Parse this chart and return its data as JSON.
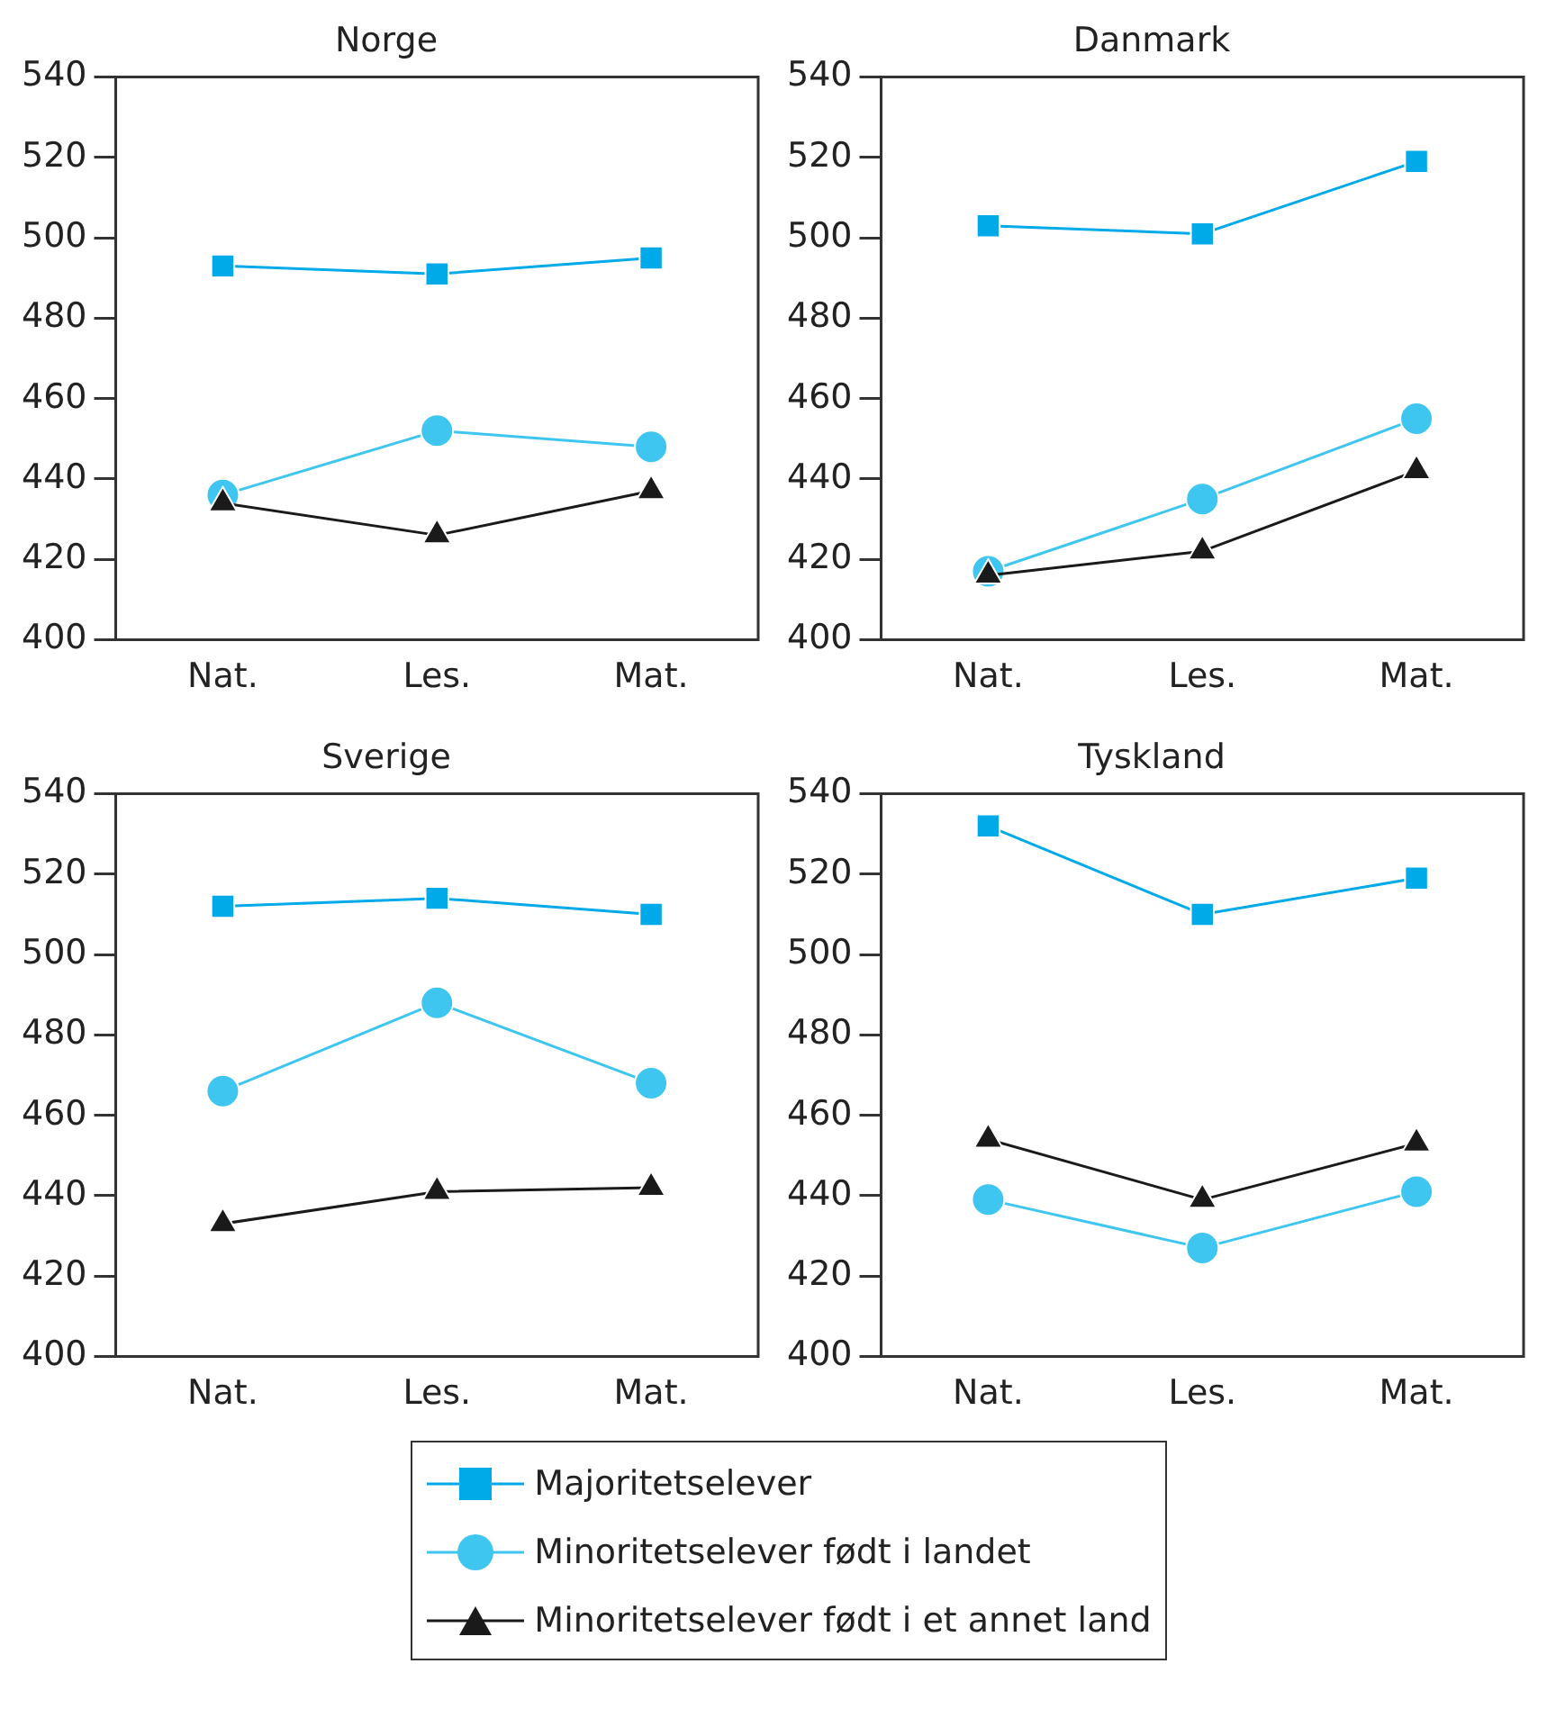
{
  "chart_data": [
    {
      "type": "line",
      "title": "Norge",
      "categories": [
        "Nat.",
        "Les.",
        "Mat."
      ],
      "ylim": [
        400,
        540
      ],
      "yticks": [
        400,
        420,
        440,
        460,
        480,
        500,
        520,
        540
      ],
      "grid": false,
      "legend": false,
      "series": [
        {
          "color": "#00a9e8",
          "marker": "square",
          "values": [
            493,
            491,
            495
          ]
        },
        {
          "color": "#3fc6f0",
          "marker": "circle",
          "values": [
            436,
            452,
            448
          ]
        },
        {
          "color": "#1a1a1a",
          "marker": "triangle",
          "values": [
            434,
            426,
            437
          ]
        }
      ]
    },
    {
      "type": "line",
      "title": "Danmark",
      "categories": [
        "Nat.",
        "Les.",
        "Mat."
      ],
      "ylim": [
        400,
        540
      ],
      "yticks": [
        400,
        420,
        440,
        460,
        480,
        500,
        520,
        540
      ],
      "grid": false,
      "legend": false,
      "series": [
        {
          "color": "#00a9e8",
          "marker": "square",
          "values": [
            503,
            501,
            519
          ]
        },
        {
          "color": "#3fc6f0",
          "marker": "circle",
          "values": [
            417,
            435,
            455
          ]
        },
        {
          "color": "#1a1a1a",
          "marker": "triangle",
          "values": [
            416,
            422,
            442
          ]
        }
      ]
    },
    {
      "type": "line",
      "title": "Sverige",
      "categories": [
        "Nat.",
        "Les.",
        "Mat."
      ],
      "ylim": [
        400,
        540
      ],
      "yticks": [
        400,
        420,
        440,
        460,
        480,
        500,
        520,
        540
      ],
      "grid": false,
      "legend": false,
      "series": [
        {
          "color": "#00a9e8",
          "marker": "square",
          "values": [
            512,
            514,
            510
          ]
        },
        {
          "color": "#3fc6f0",
          "marker": "circle",
          "values": [
            466,
            488,
            468
          ]
        },
        {
          "color": "#1a1a1a",
          "marker": "triangle",
          "values": [
            433,
            441,
            442
          ]
        }
      ]
    },
    {
      "type": "line",
      "title": "Tyskland",
      "categories": [
        "Nat.",
        "Les.",
        "Mat."
      ],
      "ylim": [
        400,
        540
      ],
      "yticks": [
        400,
        420,
        440,
        460,
        480,
        500,
        520,
        540
      ],
      "grid": false,
      "legend": "bottom",
      "series": [
        {
          "name": "Majoritetselever",
          "color": "#00a9e8",
          "marker": "square",
          "values": [
            532,
            510,
            519
          ]
        },
        {
          "name": "Minoritetselever født i landet",
          "color": "#3fc6f0",
          "marker": "circle",
          "values": [
            439,
            427,
            441
          ]
        },
        {
          "name": "Minoritetselever født i et annet land",
          "color": "#1a1a1a",
          "marker": "triangle",
          "values": [
            454,
            439,
            453
          ]
        }
      ]
    }
  ]
}
